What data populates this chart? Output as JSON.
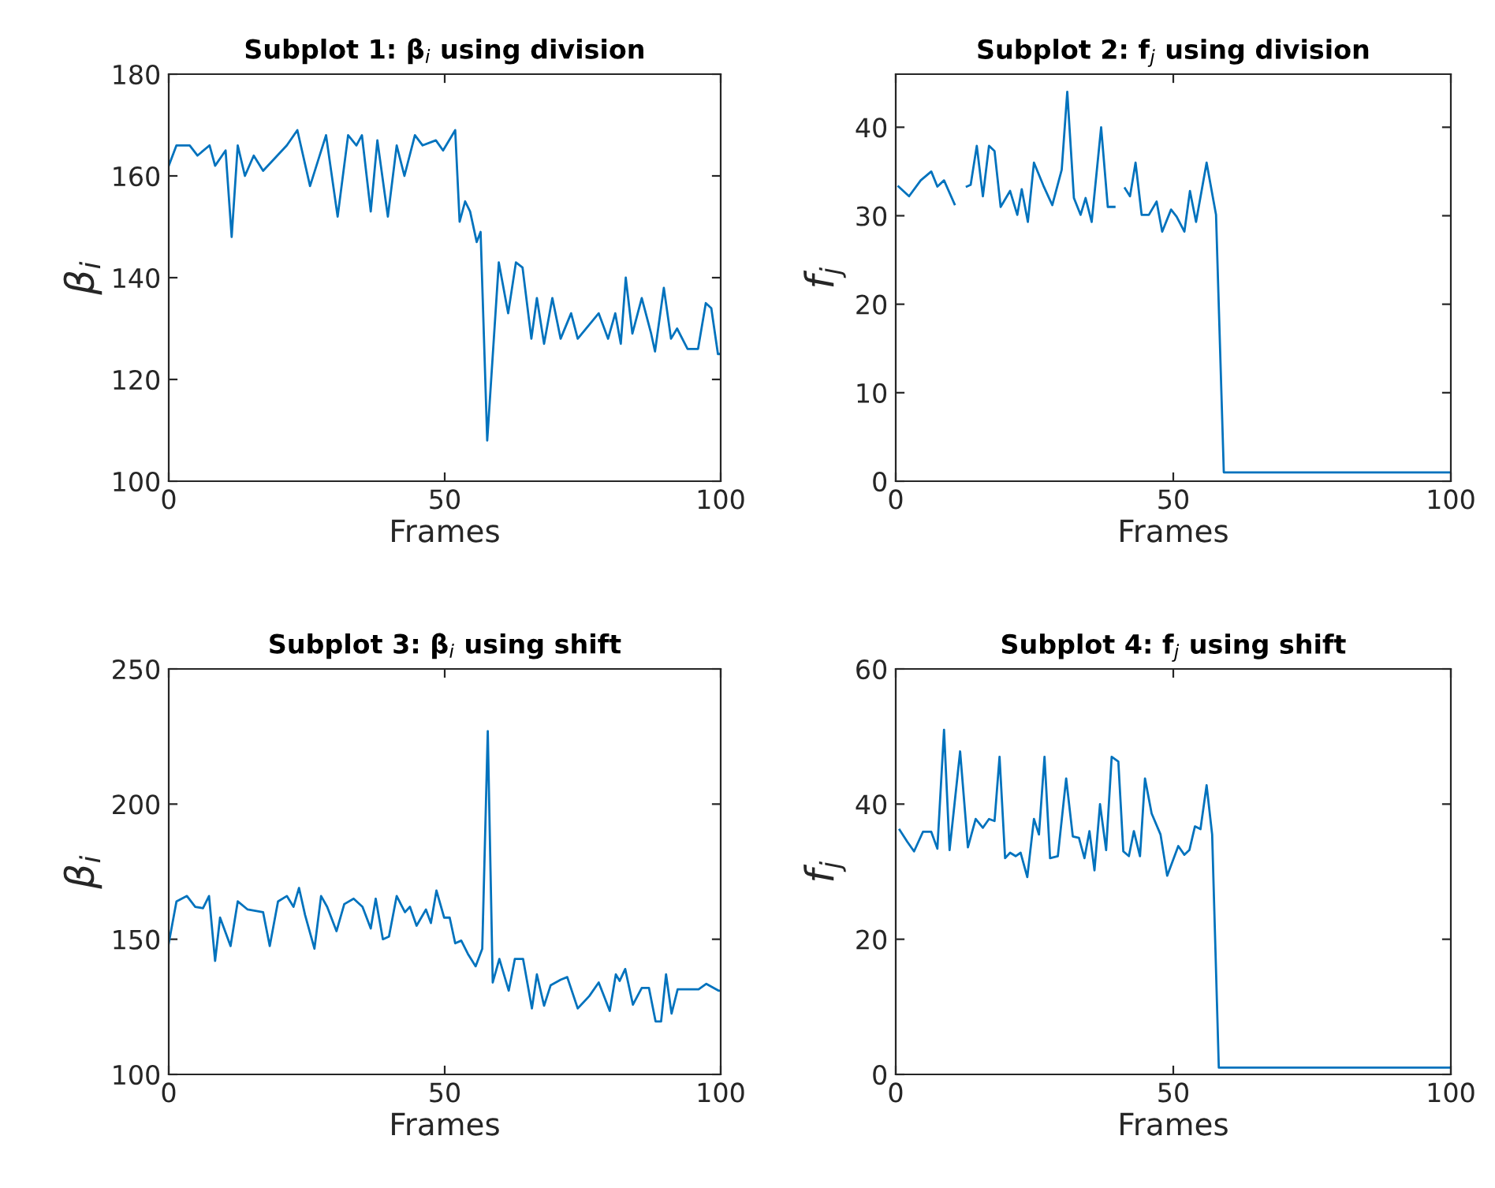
{
  "chart_data": [
    {
      "type": "line",
      "title": "Subplot 1: β$_{i}$ using division",
      "xlabel": "Frames",
      "ylabel": "β$_{i}$",
      "xlim": [
        0,
        100
      ],
      "xticks": [
        0,
        50,
        100
      ],
      "ylim": [
        100,
        180
      ],
      "yticks": [
        100,
        120,
        140,
        160,
        180
      ],
      "grid": false,
      "series": [
        {
          "color": "#0072bd",
          "x": [
            0,
            1.4,
            3.8,
            5.2,
            7.4,
            8.4,
            10.3,
            11.4,
            12.5,
            13.8,
            15.4,
            17.1,
            21.4,
            23.3,
            25.6,
            28.5,
            30.6,
            32.5,
            34,
            35,
            36.6,
            37.8,
            39.7,
            41.3,
            42.7,
            44.6,
            46,
            48.4,
            49.7,
            51.9,
            52.7,
            53.7,
            54.6,
            55.8,
            56.5,
            57.7,
            59.8,
            61.5,
            62.9,
            64.1,
            65.7,
            66.7,
            68,
            69.5,
            71,
            72.9,
            74.1,
            77.9,
            79.6,
            80.9,
            81.9,
            82.8,
            84,
            85.7,
            87.4,
            88.1,
            89.7,
            91,
            92.1,
            94,
            95.9,
            97.3,
            98.3,
            99.5,
            100
          ],
          "values": [
            162,
            166,
            166,
            164,
            166,
            162,
            165,
            148,
            166,
            160,
            164,
            161,
            166,
            169,
            158,
            168,
            152,
            168,
            166,
            168,
            153,
            167,
            152,
            166,
            160,
            168,
            166,
            167,
            165,
            169,
            151,
            155,
            153,
            147,
            149,
            108,
            143,
            133,
            143,
            142,
            128,
            136,
            127,
            136,
            128,
            133,
            128,
            133,
            128,
            133,
            127,
            140,
            129,
            136,
            129,
            125.5,
            138,
            128,
            130,
            126,
            126,
            135,
            134,
            125,
            125
          ]
        }
      ]
    },
    {
      "type": "line",
      "title": "Subplot 2: f$_{j}$ using division",
      "xlabel": "Frames",
      "ylabel": "f$_{j}$",
      "xlim": [
        0,
        100
      ],
      "xticks": [
        0,
        50,
        100
      ],
      "ylim": [
        0,
        46
      ],
      "yticks": [
        0,
        10,
        20,
        30,
        40
      ],
      "grid": false,
      "series": [
        {
          "color": "#0072bd",
          "x": [
            0.5,
            2.4,
            4.5,
            6.4,
            7.5,
            8.7,
            10.6,
            11.6,
            12.8,
            13.5,
            14.6,
            15.7,
            16.8,
            17.8,
            18.9,
            20.6,
            21.9,
            22.7,
            23.8,
            24.9,
            26.6,
            28.2,
            29.9,
            30.9,
            32.1,
            33.3,
            34.2,
            35.3,
            37,
            38.2,
            39.4,
            40.1,
            41.3,
            42.2,
            43.2,
            44.3,
            45.6,
            47,
            48,
            49.6,
            50.6,
            52,
            53,
            54.1,
            56,
            57.7,
            59.1,
            100
          ],
          "values": [
            33.3,
            32.2,
            34,
            35,
            33.3,
            34,
            31.3,
            null,
            33.3,
            33.5,
            37.9,
            32.2,
            37.9,
            37.3,
            31,
            32.8,
            30.1,
            33,
            29.3,
            36,
            33.4,
            31.2,
            35.2,
            44,
            32,
            30.1,
            32,
            29.3,
            40,
            31,
            31,
            null,
            33.1,
            32.2,
            36,
            30.1,
            30.1,
            31.6,
            28.2,
            30.7,
            29.9,
            28.2,
            32.8,
            29.3,
            36,
            30.1,
            1,
            1
          ]
        }
      ]
    },
    {
      "type": "line",
      "title": "Subplot 3: β$_{i}$ using shift",
      "xlabel": "Frames",
      "ylabel": "β$_{i}$",
      "xlim": [
        0,
        100
      ],
      "xticks": [
        0,
        50,
        100
      ],
      "ylim": [
        100,
        250
      ],
      "yticks": [
        100,
        150,
        200,
        250
      ],
      "grid": false,
      "series": [
        {
          "color": "#0072bd",
          "x": [
            0,
            1.4,
            3.3,
            4.8,
            6.2,
            7.3,
            8.4,
            9.3,
            11.2,
            12.5,
            14.3,
            17.1,
            18.3,
            19.8,
            21.4,
            22.6,
            23.6,
            24.7,
            26.4,
            27.6,
            28.7,
            30.4,
            31.8,
            33.5,
            35.1,
            36.6,
            37.5,
            38.8,
            39.9,
            41.3,
            42.8,
            43.7,
            44.9,
            46.6,
            47.5,
            48.5,
            49.9,
            50.9,
            51.9,
            53,
            54.2,
            55.6,
            56.8,
            57.8,
            58.7,
            59.9,
            61.6,
            62.7,
            64.2,
            65.8,
            66.7,
            68,
            69.2,
            71,
            72.2,
            74.1,
            76.2,
            77.9,
            79.9,
            81,
            81.7,
            82.7,
            84.1,
            85.7,
            87,
            88.2,
            89.2,
            90.1,
            91.1,
            92.2,
            96,
            97.4,
            99.6,
            100
          ],
          "values": [
            148.5,
            164,
            166,
            162,
            161.5,
            166,
            142,
            158,
            147.5,
            164,
            161,
            160,
            147.5,
            164,
            166,
            162,
            169,
            159,
            146.5,
            166,
            162,
            153,
            163,
            165,
            162,
            154,
            165,
            150,
            151,
            166,
            160,
            162,
            155,
            161,
            156,
            168,
            158,
            158,
            148.5,
            149.5,
            144.6,
            140,
            146.5,
            227,
            134,
            142.7,
            131,
            142.7,
            142.7,
            124.4,
            137,
            125.4,
            133,
            135,
            136,
            124.4,
            129,
            134,
            123.5,
            137,
            134.6,
            139,
            125.8,
            132,
            132,
            119.6,
            119.6,
            137,
            122.5,
            131.5,
            131.5,
            133.5,
            131,
            131
          ]
        }
      ]
    },
    {
      "type": "line",
      "title": "Subplot 4: f$_{j}$ using shift",
      "xlabel": "Frames",
      "ylabel": "f$_{j}$",
      "xlim": [
        0,
        100
      ],
      "xticks": [
        0,
        50,
        100
      ],
      "ylim": [
        0,
        60
      ],
      "yticks": [
        0,
        20,
        40,
        60
      ],
      "grid": false,
      "series": [
        {
          "color": "#0072bd",
          "x": [
            0.7,
            2.1,
            3.3,
            4.9,
            6.4,
            7.5,
            8.7,
            9.7,
            11.6,
            13,
            14.4,
            15.7,
            16.8,
            17.8,
            18.7,
            19.7,
            20.6,
            21.6,
            22.5,
            23.7,
            24.9,
            25.8,
            26.8,
            27.8,
            29.2,
            30.7,
            31.9,
            33,
            34,
            34.9,
            35.8,
            36.8,
            37.9,
            38.9,
            40.1,
            41,
            42,
            42.9,
            44,
            44.9,
            46.1,
            47.7,
            48.9,
            50.9,
            52,
            52.9,
            53.9,
            54.9,
            56,
            57,
            58.2,
            100
          ],
          "values": [
            36.2,
            34.4,
            33,
            35.9,
            35.9,
            33.4,
            51,
            33.2,
            47.8,
            33.6,
            37.8,
            36.5,
            37.8,
            37.5,
            47,
            32,
            32.8,
            32.3,
            32.8,
            29.2,
            37.8,
            35.5,
            47,
            32,
            32.3,
            43.8,
            35.2,
            35,
            32,
            36,
            30.2,
            40,
            33.2,
            47,
            46.3,
            33,
            32.3,
            36,
            32.3,
            43.8,
            38.6,
            35.5,
            29.4,
            33.8,
            32.5,
            33.2,
            36.7,
            36.3,
            42.8,
            35.5,
            1,
            1
          ]
        }
      ]
    }
  ]
}
